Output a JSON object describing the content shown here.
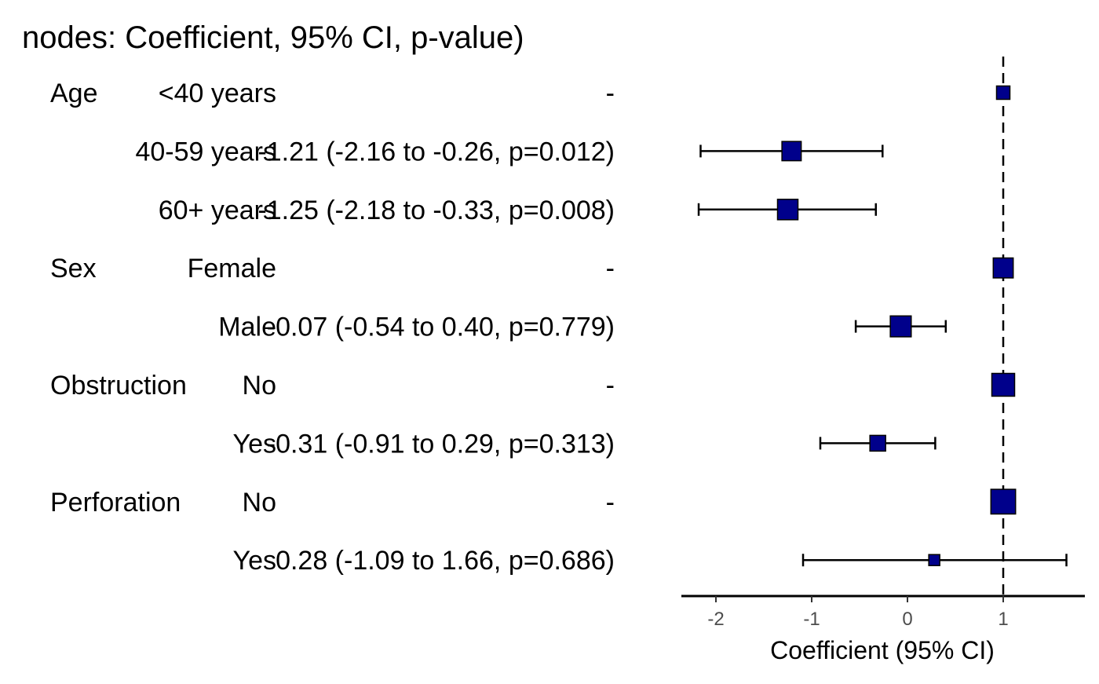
{
  "chart_data": {
    "type": "forest",
    "title": "nodes: Coefficient, 95% CI, p-value)",
    "xlabel": "Coefficient (95% CI)",
    "x_ticks": [
      "-2",
      "-1",
      "0",
      "1"
    ],
    "x_tick_values": [
      -2,
      -1,
      0,
      1
    ],
    "xlim": [
      -2.35,
      1.85
    ],
    "reference_line": 1,
    "marker_color": "#00008B",
    "rows": [
      {
        "variable": "Age",
        "level": "<40 years",
        "result": "-",
        "coef": 1.0,
        "lower": null,
        "upper": null,
        "weight": 0.3
      },
      {
        "variable": "",
        "level": "40-59 years",
        "result": "-1.21 (-2.16 to -0.26, p=0.012)",
        "coef": -1.21,
        "lower": -2.16,
        "upper": -0.26,
        "weight": 0.55
      },
      {
        "variable": "",
        "level": "60+ years",
        "result": "-1.25 (-2.18 to -0.33, p=0.008)",
        "coef": -1.25,
        "lower": -2.18,
        "upper": -0.33,
        "weight": 0.6
      },
      {
        "variable": "Sex",
        "level": "Female",
        "result": "-",
        "coef": 1.0,
        "lower": null,
        "upper": null,
        "weight": 0.58
      },
      {
        "variable": "",
        "level": "Male",
        "result": "-0.07 (-0.54 to 0.40, p=0.779)",
        "coef": -0.07,
        "lower": -0.54,
        "upper": 0.4,
        "weight": 0.62
      },
      {
        "variable": "Obstruction",
        "level": "No",
        "result": "-",
        "coef": 1.0,
        "lower": null,
        "upper": null,
        "weight": 0.7
      },
      {
        "variable": "",
        "level": "Yes",
        "result": "-0.31 (-0.91 to 0.29, p=0.313)",
        "coef": -0.31,
        "lower": -0.91,
        "upper": 0.29,
        "weight": 0.4
      },
      {
        "variable": "Perforation",
        "level": "No",
        "result": "-",
        "coef": 1.0,
        "lower": null,
        "upper": null,
        "weight": 0.78
      },
      {
        "variable": "",
        "level": "Yes",
        "result": "0.28 (-1.09 to 1.66, p=0.686)",
        "coef": 0.28,
        "lower": -1.09,
        "upper": 1.66,
        "weight": 0.2
      }
    ]
  }
}
